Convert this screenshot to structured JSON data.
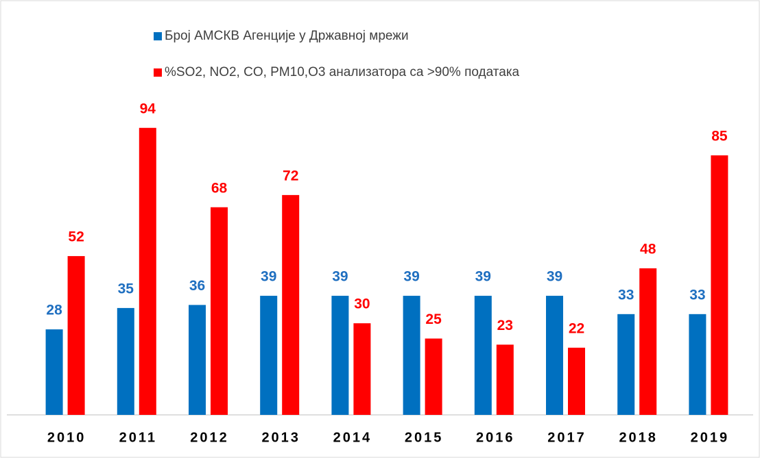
{
  "chart_data": {
    "type": "bar",
    "categories": [
      "2010",
      "2011",
      "2012",
      "2013",
      "2014",
      "2015",
      "2016",
      "2017",
      "2018",
      "2019"
    ],
    "series": [
      {
        "name": "Број АМСКВ Агенције у Државној мрежи",
        "color": "#0070c0",
        "label_color": "#1f6fc0",
        "values": [
          28,
          35,
          36,
          39,
          39,
          39,
          39,
          39,
          33,
          33
        ]
      },
      {
        "name": "%SO2, NO2, CO, PM10,O3 анализатора са >90% података",
        "color": "#ff0000",
        "label_color": "#ff0000",
        "values": [
          52,
          94,
          68,
          72,
          30,
          25,
          23,
          22,
          48,
          85
        ]
      }
    ],
    "ylim": [
      0,
      100
    ],
    "legend": "top"
  }
}
